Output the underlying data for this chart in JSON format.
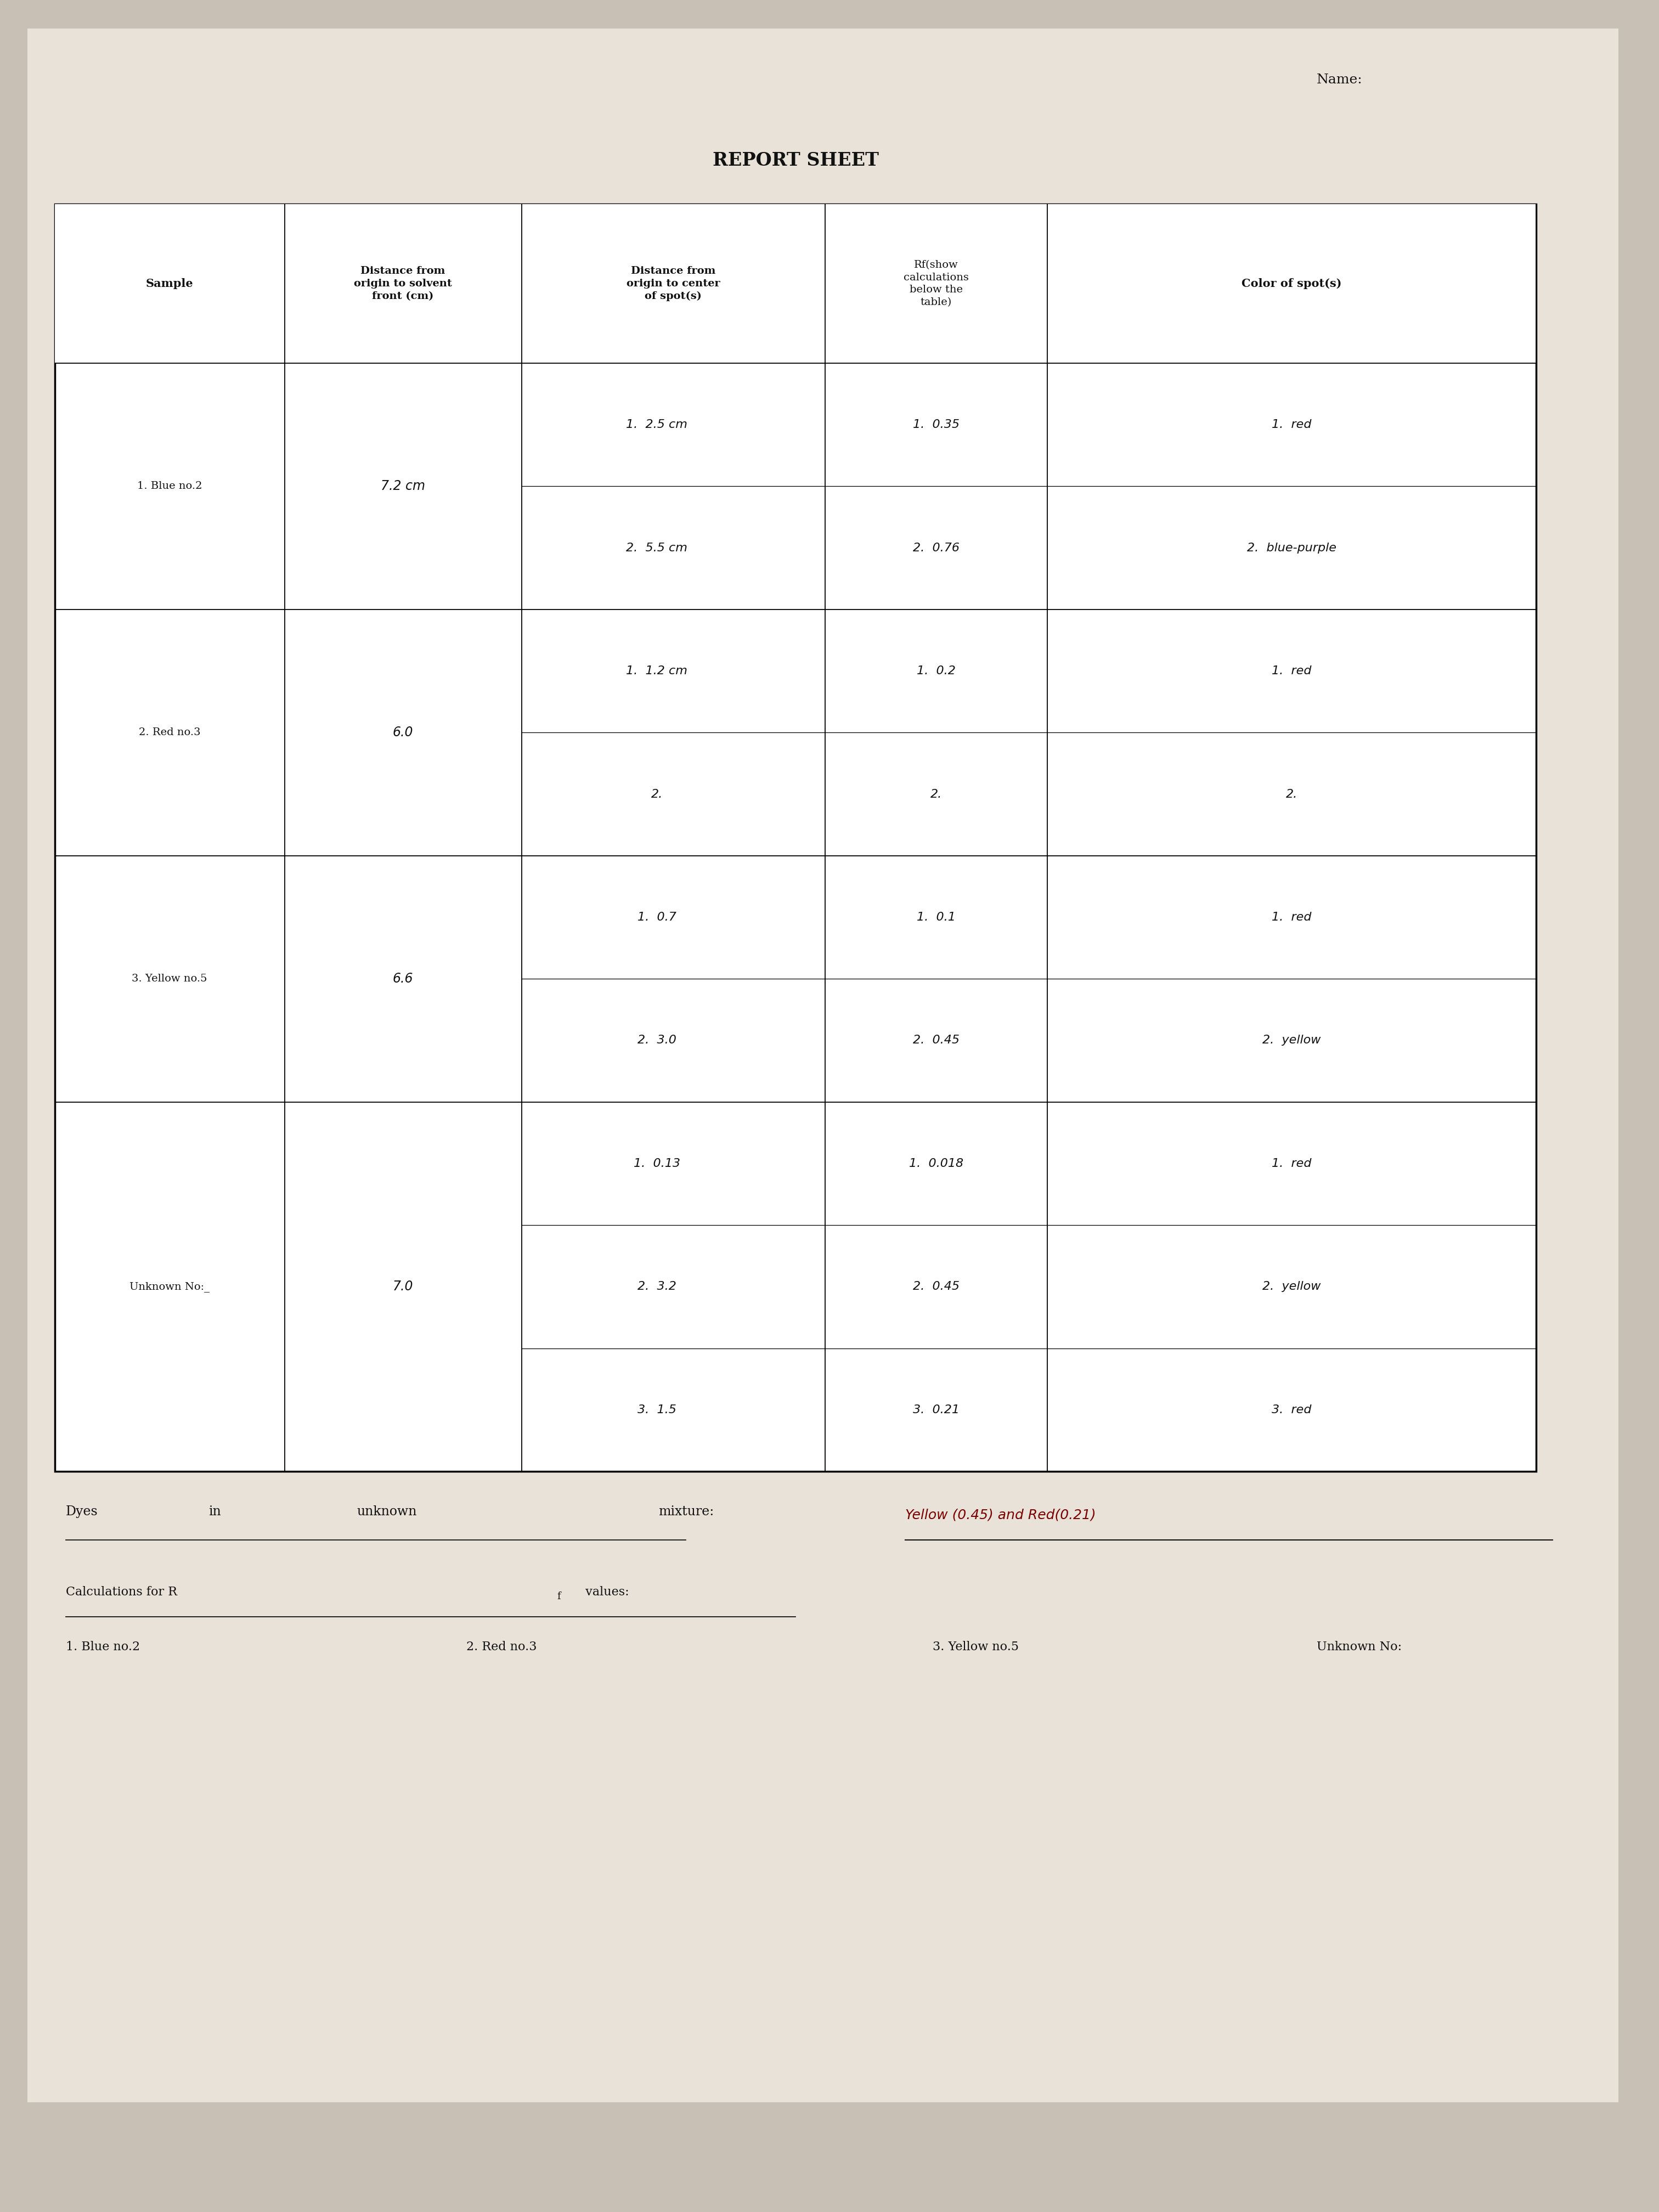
{
  "title": "REPORT SHEET",
  "name_label": "Name:",
  "bg_color": "#c8c0b4",
  "paper_color": "#e8e2d8",
  "col_headers": [
    "Sample",
    "Distance from\norigin to solvent\nfront (cm)",
    "Distance from\norigin to center\nof spot(s)",
    "Rf(show\ncalculations\nbelow the\ntable)",
    "Color of spot(s)"
  ],
  "rows": [
    {
      "sample": "1. Blue no.2",
      "solvent_front": "7.2 cm",
      "spots": [
        "1.  2.5 cm",
        "2.  5.5 cm"
      ],
      "rf": [
        "1.  0.35",
        "2.  0.76"
      ],
      "color": [
        "1.  red",
        "2.  blue-purple"
      ]
    },
    {
      "sample": "2. Red no.3",
      "solvent_front": "6.0",
      "spots": [
        "1.  1.2 cm",
        "2."
      ],
      "rf": [
        "1.  0.2",
        "2."
      ],
      "color": [
        "1.  red",
        "2."
      ]
    },
    {
      "sample": "3. Yellow no.5",
      "solvent_front": "6.6",
      "spots": [
        "1.  0.7",
        "2.  3.0"
      ],
      "rf": [
        "1.  0.1",
        "2.  0.45"
      ],
      "color": [
        "1.  red",
        "2.  yellow"
      ]
    },
    {
      "sample": "Unknown No:_",
      "solvent_front": "7.0",
      "spots": [
        "1.  0.13",
        "2.  3.2",
        "3.  1.5"
      ],
      "rf": [
        "1.  0.018",
        "2.  0.45",
        "3.  0.21"
      ],
      "color": [
        "1.  red",
        "2.  yellow",
        "3.  red"
      ]
    }
  ],
  "footer_answer": "Yellow (0.45) and Red(0.21)",
  "footer_items": [
    "1. Blue no.2",
    "2. Red no.3",
    "3. Yellow no.5",
    "Unknown No:"
  ]
}
